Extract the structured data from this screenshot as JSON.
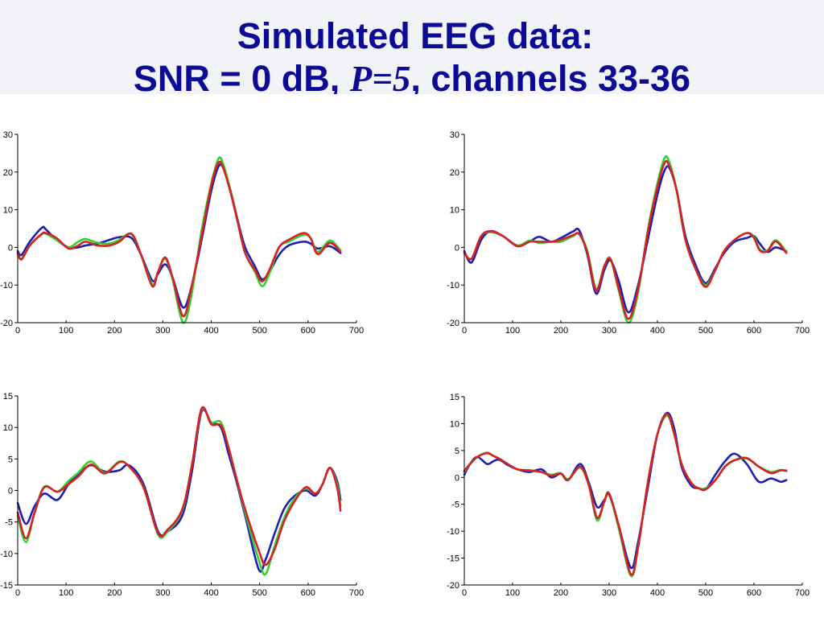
{
  "title": {
    "line1": "Simulated EEG data:",
    "line2_part1": "SNR = 0 dB, ",
    "line2_part2": "P=5",
    "line2_part3": ", channels 33-36"
  },
  "colors": {
    "title": "#0b0b96",
    "header_background": "#f2f3f7",
    "axes": "#000000"
  },
  "chart_data": [
    {
      "type": "line",
      "grid": false,
      "legend": "none",
      "xlim": [
        0,
        700
      ],
      "ylim": [
        -20,
        30
      ],
      "xticks": [
        0,
        100,
        200,
        300,
        400,
        500,
        600,
        700
      ],
      "yticks": [
        -20,
        -10,
        0,
        10,
        20,
        30
      ],
      "x": [
        0,
        8,
        25,
        50,
        58,
        80,
        105,
        125,
        140,
        165,
        190,
        210,
        235,
        255,
        278,
        290,
        305,
        320,
        342,
        360,
        380,
        400,
        415,
        425,
        440,
        455,
        470,
        490,
        505,
        520,
        540,
        560,
        590,
        605,
        620,
        645,
        667
      ],
      "series": [
        {
          "color": "#1e1eb2",
          "values": [
            -1,
            -2,
            1.5,
            5.2,
            4.8,
            2,
            0,
            0,
            0.5,
            1,
            2,
            2.7,
            2.5,
            -2,
            -8.8,
            -7,
            -4.5,
            -8,
            -16,
            -10,
            2,
            15,
            21.5,
            21,
            15,
            7,
            0,
            -5,
            -8.5,
            -6.5,
            -2,
            0.5,
            1.5,
            1,
            -0.3,
            0.3,
            -1.5
          ]
        },
        {
          "color": "#33cf33",
          "values": [
            -1.8,
            -3,
            0.5,
            3.5,
            3.6,
            2,
            0,
            1.5,
            2.2,
            1.2,
            1,
            2,
            3.5,
            -2,
            -9.8,
            -6.5,
            -3,
            -8.5,
            -20,
            -12,
            4.5,
            17,
            23.6,
            22,
            15,
            6.5,
            -1.5,
            -6.5,
            -10.3,
            -7,
            0,
            1.5,
            3.3,
            2.5,
            -1.2,
            1.8,
            -0.8
          ]
        },
        {
          "color": "#d62222",
          "values": [
            -1.5,
            -3.2,
            0.5,
            3.6,
            3.8,
            2.5,
            -0.3,
            0.5,
            1.5,
            0.5,
            0.5,
            1.5,
            3.6,
            -2,
            -10.3,
            -6.5,
            -2.7,
            -8,
            -18.3,
            -10,
            3,
            16.5,
            22.5,
            21,
            14.5,
            6.5,
            -1.5,
            -6,
            -9,
            -6,
            0,
            2,
            3.8,
            2.5,
            -1.8,
            1.2,
            -1.2
          ]
        }
      ]
    },
    {
      "type": "line",
      "grid": false,
      "legend": "none",
      "xlim": [
        0,
        700
      ],
      "ylim": [
        -20,
        30
      ],
      "xticks": [
        0,
        100,
        200,
        300,
        400,
        500,
        600,
        700
      ],
      "yticks": [
        -20,
        -10,
        0,
        10,
        20,
        30
      ],
      "x": [
        0,
        15,
        35,
        55,
        80,
        110,
        135,
        155,
        180,
        200,
        225,
        238,
        255,
        273,
        290,
        303,
        320,
        340,
        360,
        380,
        400,
        415,
        425,
        440,
        458,
        480,
        500,
        520,
        538,
        560,
        585,
        600,
        612,
        628,
        645,
        667
      ],
      "series": [
        {
          "color": "#1e1eb2",
          "values": [
            -1,
            -4,
            2,
            4.3,
            3,
            0.5,
            1.5,
            2.8,
            1.5,
            2.5,
            4.2,
            4.5,
            -2,
            -12.3,
            -6,
            -3.5,
            -9,
            -17.3,
            -10,
            2,
            14,
            20.5,
            21,
            15,
            3,
            -5,
            -9.5,
            -5.5,
            -1.5,
            1.5,
            2.5,
            3,
            1,
            -1.2,
            0,
            -1
          ]
        },
        {
          "color": "#33cf33",
          "values": [
            -1.5,
            -3,
            3,
            4,
            3,
            0.5,
            1.8,
            1.2,
            1.5,
            1.5,
            3,
            3.5,
            -1,
            -11,
            -5,
            -3,
            -11.5,
            -20,
            -12,
            4.5,
            17,
            23.8,
            22.5,
            15,
            2,
            -6,
            -10,
            -6,
            -1,
            2,
            3.8,
            2.8,
            -0.5,
            -0.8,
            1.9,
            -1.2
          ]
        },
        {
          "color": "#d62222",
          "values": [
            -1.5,
            -3,
            3,
            4.3,
            3,
            0.3,
            1.5,
            1.5,
            1.5,
            2,
            3.2,
            3.5,
            -1.5,
            -11.5,
            -5,
            -3.2,
            -11,
            -19,
            -11,
            4,
            16,
            22.5,
            21.5,
            15,
            2,
            -6,
            -10.5,
            -6,
            -1,
            2,
            3.8,
            2.5,
            -0.8,
            -1,
            1.6,
            -1.5
          ]
        }
      ]
    },
    {
      "type": "line",
      "grid": false,
      "legend": "none",
      "xlim": [
        0,
        700
      ],
      "ylim": [
        -15,
        15
      ],
      "xticks": [
        0,
        100,
        200,
        300,
        400,
        500,
        600,
        700
      ],
      "yticks": [
        -15,
        -10,
        -5,
        0,
        5,
        10,
        15
      ],
      "x": [
        0,
        17,
        35,
        55,
        82,
        105,
        125,
        151,
        180,
        210,
        230,
        260,
        290,
        310,
        340,
        360,
        380,
        400,
        420,
        435,
        450,
        470,
        498,
        512,
        530,
        550,
        570,
        595,
        615,
        630,
        645,
        660,
        667
      ],
      "series": [
        {
          "color": "#1e1eb2",
          "values": [
            -2,
            -5.3,
            -2.5,
            -0.5,
            -1.5,
            1,
            2.5,
            4,
            3,
            3.2,
            4,
            1,
            -6.5,
            -6.5,
            -4,
            3,
            12.5,
            10.8,
            10,
            6,
            2,
            -4,
            -12.5,
            -11,
            -7,
            -3,
            -1,
            0,
            -0.8,
            1,
            3.6,
            1.5,
            -1.5
          ]
        },
        {
          "color": "#33cf33",
          "values": [
            -4,
            -8.2,
            -3.5,
            0.6,
            -0.2,
            1.5,
            2.8,
            4.6,
            2.8,
            4.6,
            3.8,
            0.5,
            -7,
            -6.5,
            -3.2,
            4,
            12.8,
            10.8,
            10.8,
            7,
            2.5,
            -3.5,
            -11,
            -13.3,
            -9,
            -4.5,
            -1.5,
            0.3,
            -0.5,
            1,
            3.6,
            1,
            -2.5
          ]
        },
        {
          "color": "#d62222",
          "values": [
            -3.5,
            -7.6,
            -3.5,
            0.5,
            -0.2,
            1,
            2.2,
            4.1,
            2.7,
            4.5,
            3.8,
            0.5,
            -6.8,
            -6.2,
            -3,
            4,
            13,
            10.5,
            10.3,
            7,
            2.5,
            -3,
            -9.5,
            -11.8,
            -9.5,
            -5,
            -2,
            0.5,
            -0.5,
            1,
            3.6,
            0.5,
            -3.2
          ]
        }
      ]
    },
    {
      "type": "line",
      "grid": false,
      "legend": "none",
      "xlim": [
        0,
        700
      ],
      "ylim": [
        -20,
        15
      ],
      "xticks": [
        0,
        100,
        200,
        300,
        400,
        500,
        600,
        700
      ],
      "yticks": [
        -20,
        -15,
        -10,
        -5,
        0,
        5,
        10,
        15
      ],
      "x": [
        0,
        12,
        27,
        47,
        60,
        72,
        90,
        110,
        135,
        160,
        180,
        200,
        215,
        240,
        258,
        275,
        290,
        300,
        320,
        345,
        360,
        380,
        400,
        420,
        435,
        450,
        470,
        485,
        500,
        520,
        540,
        560,
        585,
        610,
        635,
        655,
        667
      ],
      "series": [
        {
          "color": "#1e1eb2",
          "values": [
            0.5,
            2.5,
            3.8,
            2.5,
            3,
            3.3,
            2.3,
            1.5,
            1,
            1.5,
            0,
            0.7,
            -0.5,
            2.5,
            -1,
            -5.5,
            -4.2,
            -3.2,
            -9,
            -16.8,
            -12,
            -2,
            8,
            12,
            9,
            2,
            -1.5,
            -2,
            -2.2,
            0.5,
            3,
            4.4,
            2.5,
            -0.8,
            -0.2,
            -0.8,
            -0.5
          ]
        },
        {
          "color": "#33cf33",
          "values": [
            1,
            2.5,
            3.8,
            4.6,
            4,
            3.5,
            2.5,
            1.5,
            1.3,
            1,
            0.5,
            0.8,
            -0.3,
            1.8,
            -1.5,
            -8,
            -4.5,
            -3,
            -9.5,
            -18.3,
            -13,
            -1,
            8,
            11.5,
            8,
            2.5,
            -1,
            -2,
            -2,
            -0.5,
            2,
            3.2,
            3.5,
            2,
            1,
            1.4,
            1.3
          ]
        },
        {
          "color": "#d62222",
          "values": [
            1.2,
            2.5,
            3.8,
            4.5,
            4,
            3.5,
            2.5,
            1.5,
            1.3,
            1,
            0.3,
            0.7,
            -0.5,
            2,
            -1.5,
            -7.5,
            -4.5,
            -3,
            -9,
            -18,
            -13,
            -1,
            8,
            11.8,
            8,
            2.5,
            -1,
            -2,
            -2.2,
            -0.5,
            2,
            3.2,
            3.6,
            2,
            0.8,
            1.3,
            1.2
          ]
        }
      ]
    }
  ]
}
